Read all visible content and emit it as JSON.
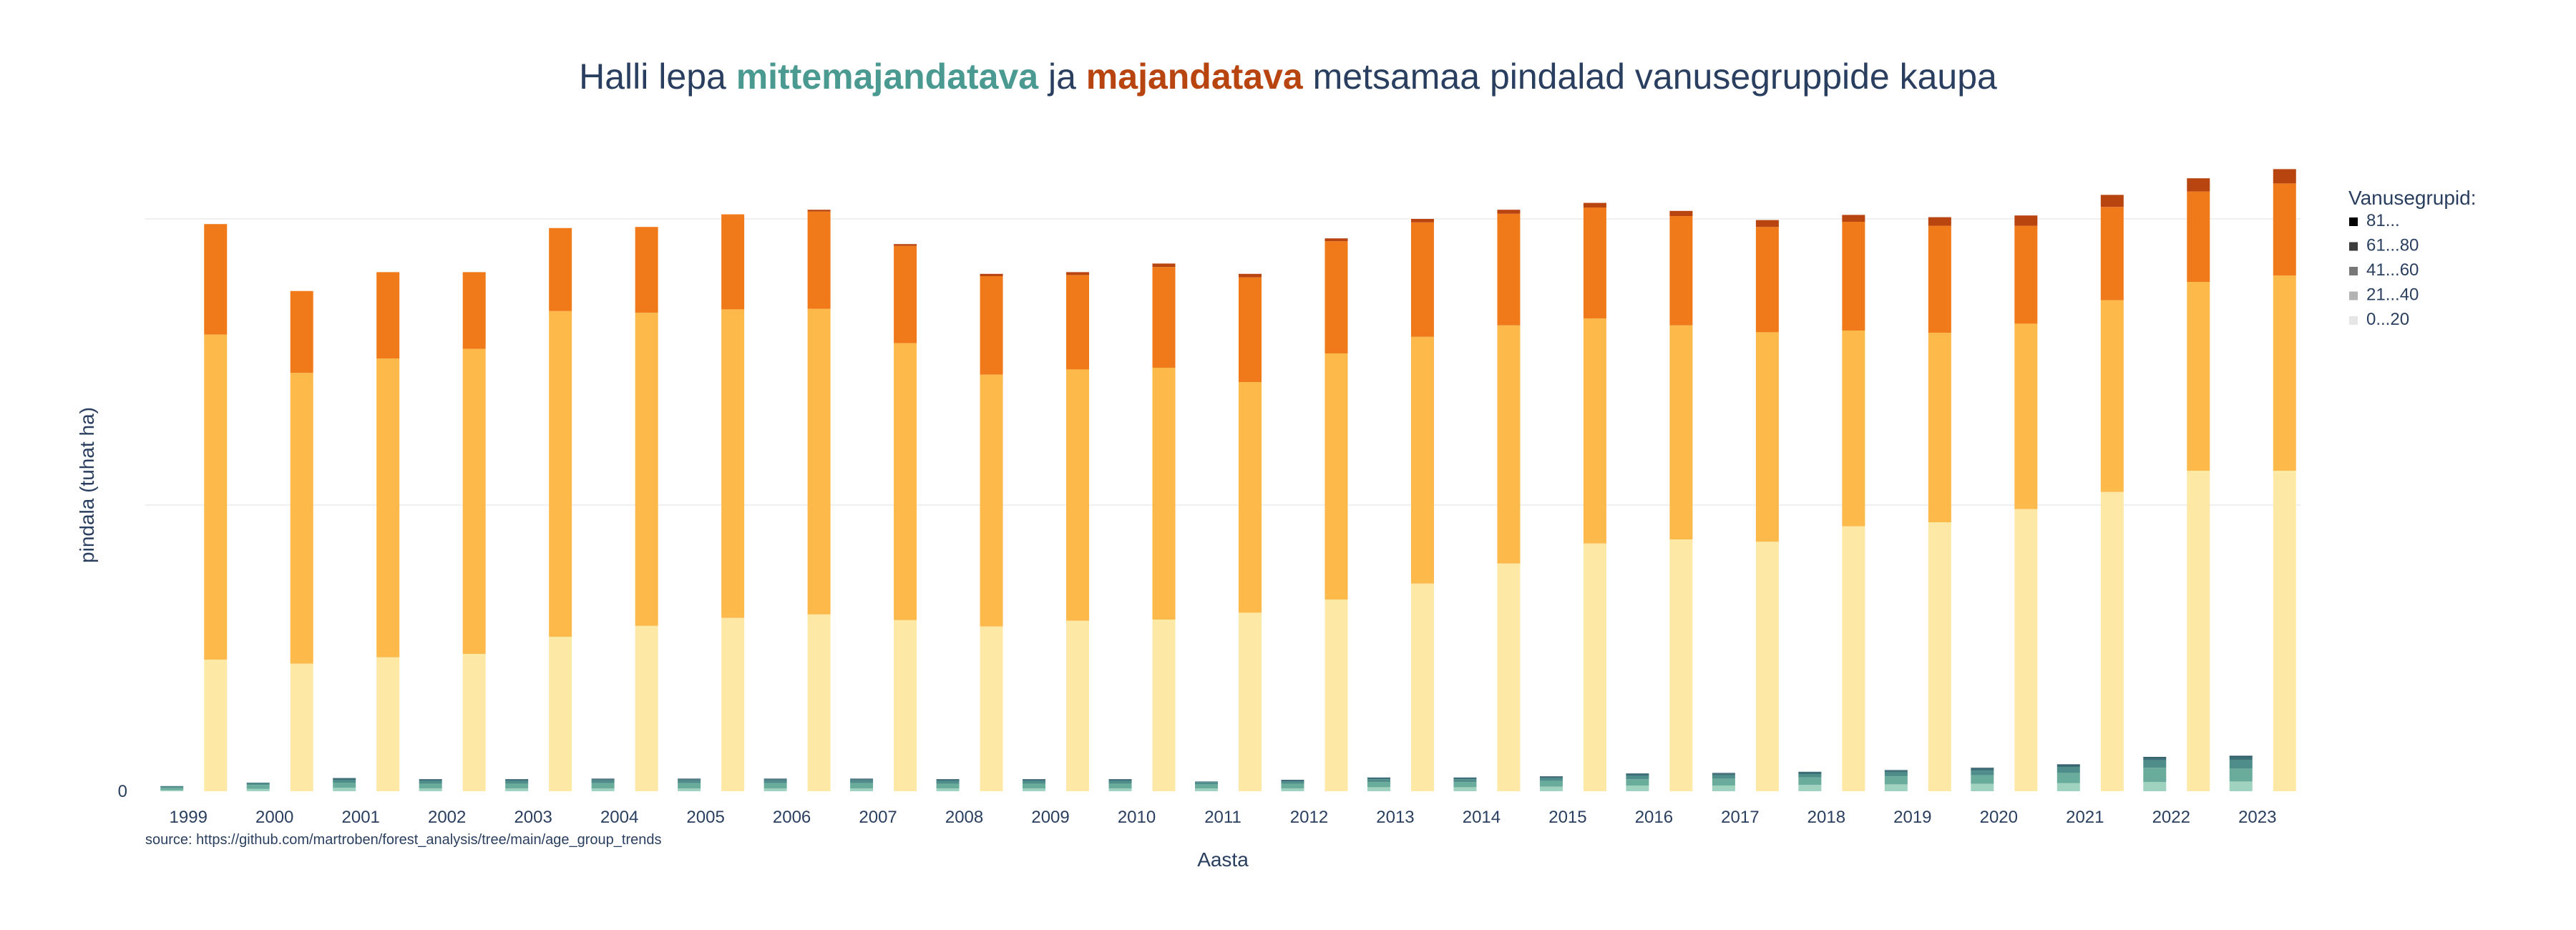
{
  "chart_data": {
    "type": "bar",
    "title": {
      "part1": "Halli lepa ",
      "part2": "mittemajandatava",
      "part3": " ja ",
      "part4": "majandatava",
      "part5": " metsamaa pindalad vanusegruppide kaupa"
    },
    "xlabel": "Aasta",
    "ylabel": "pindala (tuhat ha)",
    "source": "source: https://github.com/martroben/forest_analysis/tree/main/age_group_trends",
    "y_tick_labels": [
      "0"
    ],
    "ylim": [
      0,
      102
    ],
    "grid": true,
    "legend": {
      "title": "Vanusegrupid:",
      "placement": "right",
      "items": [
        {
          "label": "81...",
          "color": "#000000"
        },
        {
          "label": "61...80",
          "color": "#3b3b3b"
        },
        {
          "label": "41...60",
          "color": "#777777"
        },
        {
          "label": "21...40",
          "color": "#b3b3b3"
        },
        {
          "label": "0...20",
          "color": "#e6e6e6"
        }
      ]
    },
    "categories": [
      "1999",
      "2000",
      "2001",
      "2002",
      "2003",
      "2004",
      "2005",
      "2006",
      "2007",
      "2008",
      "2009",
      "2010",
      "2011",
      "2012",
      "2013",
      "2014",
      "2015",
      "2016",
      "2017",
      "2018",
      "2019",
      "2020",
      "2021",
      "2022",
      "2023"
    ],
    "non_managed": {
      "colors": [
        "#9fd3c0",
        "#69ac9c",
        "#4f8d8b",
        "#3b6f78",
        "#2d5866"
      ],
      "series": [
        {
          "name": "0...20",
          "values": [
            0.2,
            0.4,
            0.6,
            0.5,
            0.5,
            0.5,
            0.5,
            0.5,
            0.5,
            0.5,
            0.5,
            0.5,
            0.5,
            0.5,
            0.7,
            0.7,
            0.8,
            1.0,
            1.0,
            1.1,
            1.2,
            1.3,
            1.4,
            1.6,
            1.7
          ]
        },
        {
          "name": "21...40",
          "values": [
            0.4,
            0.7,
            0.9,
            0.8,
            0.8,
            0.9,
            0.9,
            0.9,
            0.9,
            0.8,
            0.8,
            0.8,
            0.7,
            0.8,
            0.9,
            0.9,
            1.0,
            1.1,
            1.2,
            1.3,
            1.4,
            1.5,
            1.8,
            2.5,
            2.3
          ]
        },
        {
          "name": "41...60",
          "values": [
            0.2,
            0.3,
            0.5,
            0.5,
            0.5,
            0.5,
            0.5,
            0.5,
            0.5,
            0.5,
            0.5,
            0.5,
            0.4,
            0.4,
            0.5,
            0.5,
            0.5,
            0.6,
            0.6,
            0.6,
            0.7,
            0.8,
            1.0,
            1.3,
            1.5
          ]
        },
        {
          "name": "61...80",
          "values": [
            0.1,
            0.1,
            0.2,
            0.2,
            0.2,
            0.2,
            0.2,
            0.2,
            0.2,
            0.2,
            0.2,
            0.2,
            0.1,
            0.2,
            0.2,
            0.2,
            0.2,
            0.3,
            0.3,
            0.3,
            0.3,
            0.3,
            0.3,
            0.4,
            0.5
          ]
        },
        {
          "name": "81...",
          "values": [
            0,
            0,
            0.1,
            0.1,
            0.1,
            0.1,
            0.1,
            0.1,
            0.1,
            0.1,
            0.1,
            0.1,
            0,
            0.1,
            0.1,
            0.1,
            0.1,
            0.1,
            0.1,
            0.1,
            0.1,
            0.2,
            0.2,
            0.2,
            0.2
          ]
        }
      ]
    },
    "managed": {
      "colors": [
        "#fde8a6",
        "#fdb94a",
        "#f07a1a",
        "#b8440f",
        "#7a2e0e"
      ],
      "series": [
        {
          "name": "0...20",
          "values": [
            23.0,
            22.3,
            23.4,
            24.0,
            27.0,
            28.9,
            30.3,
            30.9,
            29.9,
            28.8,
            29.8,
            30.0,
            31.2,
            33.5,
            36.3,
            39.8,
            43.3,
            44.0,
            43.6,
            46.3,
            47.0,
            49.3,
            52.3,
            56.0,
            56.0
          ]
        },
        {
          "name": "21...40",
          "values": [
            56.8,
            50.8,
            52.2,
            53.3,
            56.9,
            54.7,
            53.9,
            53.4,
            48.4,
            44.0,
            43.9,
            44.0,
            40.3,
            43.0,
            43.1,
            41.6,
            39.3,
            37.4,
            36.6,
            34.2,
            33.1,
            32.4,
            33.5,
            33.0,
            34.1
          ]
        },
        {
          "name": "41...60",
          "values": [
            19.3,
            14.3,
            15.1,
            13.4,
            14.5,
            15.0,
            16.6,
            17.0,
            17.0,
            17.2,
            16.5,
            17.6,
            18.3,
            19.6,
            20.0,
            19.5,
            19.4,
            19.1,
            18.4,
            19.0,
            18.7,
            17.1,
            16.3,
            15.8,
            16.1
          ]
        },
        {
          "name": "61...80",
          "values": [
            0,
            0,
            0,
            0,
            0,
            0,
            0,
            0.3,
            0.3,
            0.4,
            0.5,
            0.6,
            0.6,
            0.5,
            0.6,
            0.7,
            0.8,
            0.9,
            1.2,
            1.2,
            1.5,
            1.8,
            2.1,
            2.3,
            2.5
          ]
        },
        {
          "name": "81...",
          "values": [
            0,
            0,
            0,
            0,
            0,
            0,
            0,
            0,
            0,
            0,
            0,
            0,
            0,
            0,
            0,
            0,
            0,
            0,
            0,
            0,
            0,
            0,
            0,
            0,
            0
          ]
        }
      ]
    }
  }
}
